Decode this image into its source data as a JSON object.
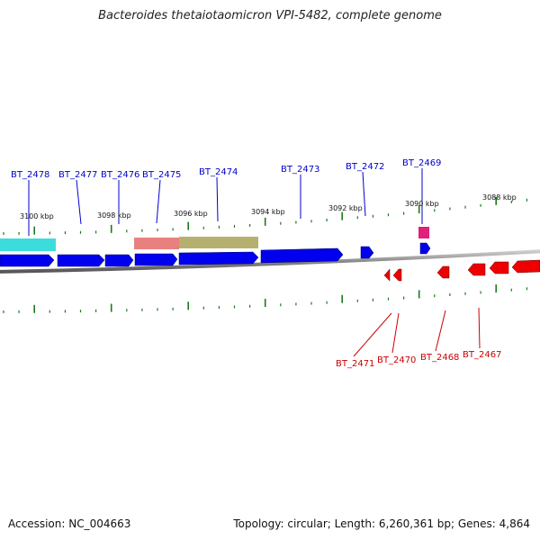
{
  "title": "Bacteroides thetaiotaomicron VPI-5482, complete genome",
  "accession": "Accession: NC_004663",
  "topology": "Topology: circular; Length: 6,260,361 bp; Genes: 4,864",
  "colors": {
    "forward_gene": "#0000ee",
    "reverse_gene": "#ee0000",
    "tick": "#1a7a1a",
    "backbone": "#8a8a8a",
    "feature_cyan": "#3ddcdc",
    "feature_salmon": "#e98080",
    "feature_olive": "#b5b070",
    "feature_pink": "#e0207a"
  },
  "position_labels": [
    "3100 kbp",
    "3098 kbp",
    "3096 kbp",
    "3094 kbp",
    "3092 kbp",
    "3090 kbp",
    "3088 kbp"
  ],
  "top_genes": [
    "BT_2478",
    "BT_2477",
    "BT_2476",
    "BT_2475",
    "BT_2474",
    "BT_2473",
    "BT_2472",
    "BT_2469"
  ],
  "bottom_genes": [
    "BT_2471",
    "BT_2470",
    "BT_2468",
    "BT_2467"
  ]
}
